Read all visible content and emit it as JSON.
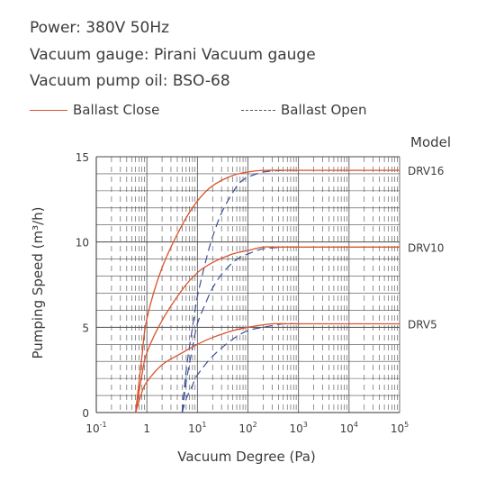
{
  "specs": [
    "Power: 380V 50Hz",
    "Vacuum gauge: Pirani Vacuum gauge",
    "Vacuum pump oil: BSO-68"
  ],
  "legend": {
    "close_label": "Ballast Close",
    "open_label": "Ballast Open"
  },
  "colors": {
    "ballast_close": "#d9532c",
    "ballast_open": "#3d4f9a",
    "grid": "#4a4a4a"
  },
  "chart_data": {
    "type": "line",
    "xlabel": "Vacuum Degree (Pa)",
    "ylabel": "Pumping Speed (m³/h)",
    "x_scale": "log",
    "xlim": [
      0.1,
      100000
    ],
    "ylim": [
      0,
      15
    ],
    "x_ticks": [
      {
        "value": 0.1,
        "base": "10",
        "exp": "-1"
      },
      {
        "value": 1,
        "base": "1",
        "exp": ""
      },
      {
        "value": 10,
        "base": "10",
        "exp": "1"
      },
      {
        "value": 100,
        "base": "10",
        "exp": "2"
      },
      {
        "value": 1000,
        "base": "10",
        "exp": "3"
      },
      {
        "value": 10000,
        "base": "10",
        "exp": "4"
      },
      {
        "value": 100000,
        "base": "10",
        "exp": "5"
      }
    ],
    "y_ticks": [
      0,
      5,
      10,
      15
    ],
    "model_header": "Model",
    "models": [
      {
        "name": "DRV16",
        "close": [
          [
            0.6,
            0
          ],
          [
            0.8,
            3.3
          ],
          [
            1,
            5.5
          ],
          [
            2,
            8.5
          ],
          [
            5,
            11
          ],
          [
            10,
            12.4
          ],
          [
            20,
            13.3
          ],
          [
            50,
            13.9
          ],
          [
            100,
            14.1
          ],
          [
            200,
            14.2
          ],
          [
            1000,
            14.2
          ],
          [
            100000,
            14.2
          ]
        ],
        "open": [
          [
            5,
            0
          ],
          [
            6,
            2.5
          ],
          [
            8,
            5
          ],
          [
            10,
            6.8
          ],
          [
            15,
            9
          ],
          [
            20,
            10.3
          ],
          [
            30,
            11.7
          ],
          [
            50,
            12.9
          ],
          [
            70,
            13.5
          ],
          [
            100,
            13.8
          ],
          [
            200,
            14.1
          ],
          [
            500,
            14.2
          ],
          [
            1000,
            14.2
          ]
        ]
      },
      {
        "name": "DRV10",
        "close": [
          [
            0.6,
            0
          ],
          [
            0.8,
            2.2
          ],
          [
            1,
            3.5
          ],
          [
            2,
            5.4
          ],
          [
            5,
            7.2
          ],
          [
            10,
            8.2
          ],
          [
            20,
            8.8
          ],
          [
            50,
            9.3
          ],
          [
            100,
            9.5
          ],
          [
            200,
            9.7
          ],
          [
            500,
            9.7
          ],
          [
            100000,
            9.7
          ]
        ],
        "open": [
          [
            5,
            0
          ],
          [
            6,
            1.8
          ],
          [
            8,
            3.8
          ],
          [
            10,
            5.2
          ],
          [
            15,
            6.5
          ],
          [
            20,
            7.3
          ],
          [
            30,
            8.1
          ],
          [
            50,
            8.8
          ],
          [
            70,
            9.1
          ],
          [
            100,
            9.3
          ],
          [
            200,
            9.6
          ],
          [
            500,
            9.7
          ]
        ]
      },
      {
        "name": "DRV5",
        "close": [
          [
            0.6,
            0
          ],
          [
            0.8,
            1.2
          ],
          [
            1,
            1.8
          ],
          [
            2,
            2.8
          ],
          [
            5,
            3.5
          ],
          [
            10,
            4.0
          ],
          [
            20,
            4.4
          ],
          [
            50,
            4.8
          ],
          [
            100,
            5.0
          ],
          [
            300,
            5.2
          ],
          [
            1000,
            5.2
          ],
          [
            100000,
            5.2
          ]
        ],
        "open": [
          [
            5,
            0
          ],
          [
            6,
            0.8
          ],
          [
            8,
            1.6
          ],
          [
            10,
            2.2
          ],
          [
            20,
            3.3
          ],
          [
            50,
            4.3
          ],
          [
            100,
            4.8
          ],
          [
            200,
            5.0
          ],
          [
            500,
            5.2
          ],
          [
            1000,
            5.2
          ]
        ]
      }
    ]
  }
}
